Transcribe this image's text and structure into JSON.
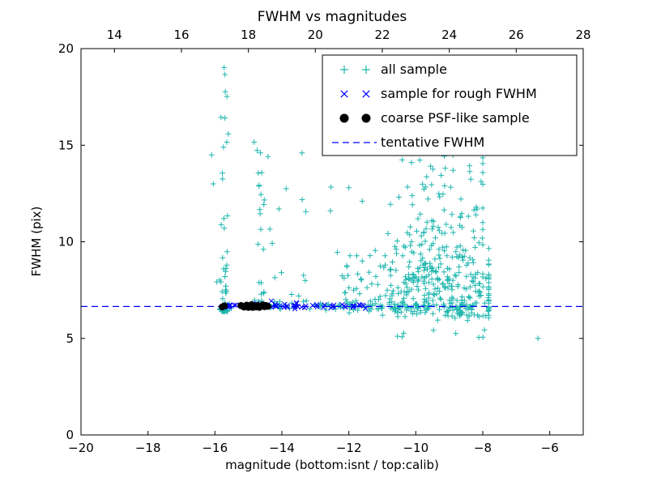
{
  "chart_data": {
    "type": "scatter",
    "title": "FWHM vs magnitudes",
    "xlabel": "magnitude (bottom:isnt / top:calib)",
    "ylabel": "FWHM (pix)",
    "xlim": [
      -20,
      -5
    ],
    "ylim": [
      0,
      20
    ],
    "x_ticks": [
      -20,
      -18,
      -16,
      -14,
      -12,
      -10,
      -8,
      -6
    ],
    "y_ticks": [
      0,
      5,
      10,
      15,
      20
    ],
    "top_ticks": [
      14,
      16,
      18,
      20,
      22,
      24,
      26,
      28
    ],
    "top_axis_offset": 33,
    "grid": false,
    "legend_position": "upper right",
    "seed": 20,
    "colors": {
      "all_sample": "#1db6ae",
      "rough_fwhm": "#0000ff",
      "psf_like": "#000000",
      "tentative_line": "#0000ff"
    },
    "tentative_line": {
      "y": 6.65,
      "color": "#0000ff",
      "dash": [
        8,
        5
      ]
    },
    "legend": [
      {
        "label": "all sample",
        "marker": "plus",
        "color": "#1db6ae"
      },
      {
        "label": "sample for rough FWHM",
        "marker": "x",
        "color": "#0000ff"
      },
      {
        "label": "coarse PSF-like sample",
        "marker": "dot",
        "color": "#000000"
      },
      {
        "label": "tentative FWHM",
        "marker": "dash",
        "color": "#0000ff"
      }
    ],
    "series": [
      {
        "id": "all-sample",
        "name": "all sample",
        "marker": "plus",
        "color": "#1db6ae",
        "clusters": [
          {
            "n": 62,
            "x": {
              "kind": "gauss",
              "mean": -15.72,
              "sd": 0.09,
              "min": -16.15,
              "max": -15.45
            },
            "y": {
              "kind": "pow",
              "min": 6.4,
              "max": 19.4,
              "pow": 3
            }
          },
          {
            "n": 26,
            "x": {
              "kind": "gauss",
              "mean": -14.6,
              "sd": 0.16,
              "min": -15.0,
              "max": -14.25
            },
            "y": {
              "kind": "pow",
              "min": 6.9,
              "max": 16.3,
              "pow": 2.2
            }
          },
          {
            "n": 16,
            "x": {
              "kind": "uniform",
              "min": -14.3,
              "max": -12.25
            },
            "y": {
              "kind": "pow",
              "min": 6.9,
              "max": 14.6,
              "pow": 2.2
            }
          },
          {
            "n": 250,
            "x": {
              "kind": "gauss",
              "mean": -9.15,
              "sd": 1.05,
              "min": -12.2,
              "max": -7.82
            },
            "y": {
              "kind": "gaussabs",
              "base": 6.05,
              "sd": 1.7,
              "max": 14.5
            }
          },
          {
            "n": 150,
            "x": {
              "kind": "gauss",
              "mean": -9.35,
              "sd": 0.95,
              "min": -11.6,
              "max": -8.0
            },
            "y": {
              "kind": "pow",
              "min": 8.0,
              "max": 15.6,
              "pow": 1.4
            }
          },
          {
            "n": 45,
            "x": {
              "kind": "uniform",
              "min": -12.25,
              "max": -10.3
            },
            "y": {
              "kind": "gaussabs",
              "base": 6.4,
              "sd": 1.3,
              "max": 12.8
            }
          },
          {
            "n": 85,
            "x": {
              "kind": "uniform",
              "min": -14.35,
              "max": -8.2
            },
            "y": {
              "kind": "gauss",
              "mean": 6.68,
              "sd": 0.09
            }
          },
          {
            "n": 12,
            "x": {
              "kind": "uniform",
              "min": -10.6,
              "max": -7.85
            },
            "y": {
              "kind": "uniform",
              "min": 4.95,
              "max": 6.25
            }
          }
        ],
        "points": [
          [
            -6.35,
            5.0
          ],
          [
            -13.4,
            14.6
          ],
          [
            -16.1,
            14.5
          ],
          [
            -16.05,
            13.0
          ],
          [
            -12.0,
            12.8
          ],
          [
            -12.55,
            11.6
          ],
          [
            -9.7,
            15.3
          ],
          [
            -9.3,
            15.6
          ],
          [
            -8.55,
            14.9
          ]
        ]
      },
      {
        "id": "rough-fwhm",
        "name": "sample for rough FWHM",
        "marker": "x",
        "color": "#0000ff",
        "clusters": [
          {
            "n": 55,
            "x": {
              "kind": "uniform",
              "min": -15.75,
              "max": -11.4
            },
            "y": {
              "kind": "gauss",
              "mean": 6.67,
              "sd": 0.05
            }
          },
          {
            "n": 12,
            "x": {
              "kind": "uniform",
              "min": -14.6,
              "max": -13.55
            },
            "y": {
              "kind": "gauss",
              "mean": 6.72,
              "sd": 0.1
            }
          }
        ],
        "points": []
      },
      {
        "id": "psf-like",
        "name": "coarse PSF-like sample",
        "marker": "dot",
        "color": "#000000",
        "clusters": [],
        "points": [
          [
            -15.78,
            6.63
          ],
          [
            -15.72,
            6.68
          ],
          [
            -15.22,
            6.7
          ],
          [
            -15.13,
            6.62
          ],
          [
            -15.05,
            6.72
          ],
          [
            -15.0,
            6.61
          ],
          [
            -14.95,
            6.69
          ],
          [
            -14.9,
            6.75
          ],
          [
            -14.87,
            6.61
          ],
          [
            -14.82,
            6.68
          ],
          [
            -14.77,
            6.63
          ],
          [
            -14.72,
            6.7
          ],
          [
            -14.67,
            6.61
          ],
          [
            -14.62,
            6.68
          ],
          [
            -14.57,
            6.74
          ],
          [
            -14.52,
            6.64
          ],
          [
            -14.47,
            6.7
          ],
          [
            -14.42,
            6.66
          ]
        ]
      }
    ]
  }
}
